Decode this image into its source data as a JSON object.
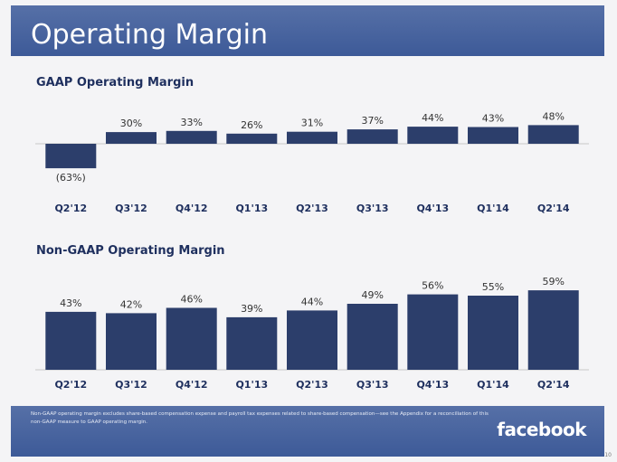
{
  "slide": {
    "title": "Operating Margin",
    "footnote": "Non-GAAP operating margin excludes share-based compensation expense and payroll tax expenses related to share-based compensation—see the Appendix for a reconciliation of this non-GAAP measure to GAAP operating margin.",
    "logo_text": "facebook",
    "page_number": "10"
  },
  "colors": {
    "bar": "#2c3e6b",
    "header": "#3d5a98",
    "title_text": "#1e2f5e",
    "axis": "#c8c8c8"
  },
  "chart_data": [
    {
      "type": "bar",
      "title": "GAAP Operating Margin",
      "categories": [
        "Q2'12",
        "Q3'12",
        "Q4'12",
        "Q1'13",
        "Q2'13",
        "Q3'13",
        "Q4'13",
        "Q1'14",
        "Q2'14"
      ],
      "values": [
        -63,
        30,
        33,
        26,
        31,
        37,
        44,
        43,
        48
      ],
      "labels": [
        "(63%)",
        "30%",
        "33%",
        "26%",
        "31%",
        "37%",
        "44%",
        "43%",
        "48%"
      ],
      "xlabel": "",
      "ylabel": "",
      "unit": "%"
    },
    {
      "type": "bar",
      "title": "Non-GAAP Operating Margin",
      "categories": [
        "Q2'12",
        "Q3'12",
        "Q4'12",
        "Q1'13",
        "Q2'13",
        "Q3'13",
        "Q4'13",
        "Q1'14",
        "Q2'14"
      ],
      "values": [
        43,
        42,
        46,
        39,
        44,
        49,
        56,
        55,
        59
      ],
      "labels": [
        "43%",
        "42%",
        "46%",
        "39%",
        "44%",
        "49%",
        "56%",
        "55%",
        "59%"
      ],
      "xlabel": "",
      "ylabel": "",
      "unit": "%"
    }
  ]
}
